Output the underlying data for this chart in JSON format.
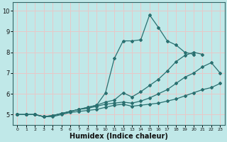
{
  "title": "",
  "xlabel": "Humidex (Indice chaleur)",
  "ylabel": "",
  "bg_color": "#c0e8e8",
  "line_color": "#2a7070",
  "grid_color": "#e8c8c8",
  "xlim": [
    -0.5,
    23.5
  ],
  "ylim": [
    4.5,
    10.4
  ],
  "yticks": [
    5,
    6,
    7,
    8,
    9,
    10
  ],
  "xticks": [
    0,
    1,
    2,
    3,
    4,
    5,
    6,
    7,
    8,
    9,
    10,
    11,
    12,
    13,
    14,
    15,
    16,
    17,
    18,
    19,
    20,
    21,
    22,
    23
  ],
  "series": [
    [
      5.0,
      5.0,
      5.0,
      4.9,
      4.9,
      5.0,
      5.1,
      5.15,
      5.2,
      5.25,
      5.35,
      5.45,
      5.5,
      5.4,
      5.45,
      5.5,
      5.55,
      5.65,
      5.75,
      5.9,
      6.05,
      6.2,
      6.3,
      6.5
    ],
    [
      5.0,
      5.0,
      5.0,
      4.9,
      4.95,
      5.05,
      5.15,
      5.25,
      5.3,
      5.4,
      5.5,
      5.55,
      5.6,
      5.55,
      5.65,
      5.8,
      6.0,
      6.2,
      6.5,
      6.8,
      7.0,
      7.3,
      7.5,
      7.0
    ],
    [
      5.0,
      5.0,
      5.0,
      4.9,
      4.95,
      5.05,
      5.15,
      5.25,
      5.35,
      5.45,
      5.6,
      5.7,
      6.05,
      5.85,
      6.1,
      6.4,
      6.7,
      7.1,
      7.55,
      7.85,
      8.0,
      7.9,
      null,
      null
    ],
    [
      5.0,
      5.0,
      5.0,
      4.9,
      4.95,
      5.05,
      5.15,
      5.25,
      5.35,
      5.45,
      6.05,
      7.7,
      8.55,
      8.55,
      8.6,
      9.8,
      9.2,
      8.55,
      8.35,
      8.0,
      7.9,
      null,
      null,
      null
    ]
  ]
}
